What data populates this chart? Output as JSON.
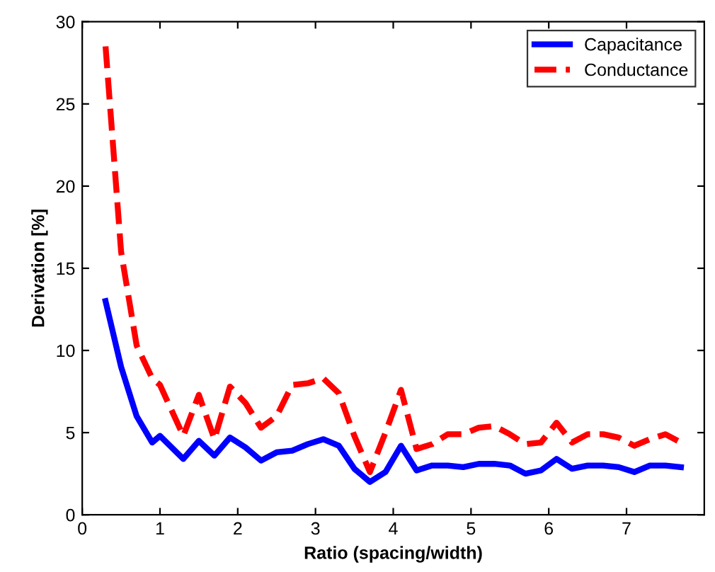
{
  "chart_data": {
    "type": "line",
    "xlabel": "Ratio (spacing/width)",
    "ylabel": "Derivation [%]",
    "x": [
      0.3,
      0.5,
      0.7,
      0.9,
      1.0,
      1.3,
      1.5,
      1.7,
      1.9,
      2.1,
      2.3,
      2.5,
      2.7,
      2.9,
      3.1,
      3.3,
      3.5,
      3.7,
      3.9,
      4.1,
      4.3,
      4.5,
      4.7,
      4.9,
      5.1,
      5.3,
      5.5,
      5.7,
      5.9,
      6.1,
      6.3,
      6.5,
      6.7,
      6.9,
      7.1,
      7.3,
      7.5,
      7.7
    ],
    "series": [
      {
        "name": "Capacitance",
        "color": "#0000ff",
        "line_style": "solid",
        "values": [
          13,
          9,
          6,
          4.4,
          4.8,
          3.4,
          4.5,
          3.6,
          4.7,
          4.1,
          3.3,
          3.8,
          3.9,
          4.3,
          4.6,
          4.2,
          2.8,
          2.0,
          2.6,
          4.2,
          2.7,
          3.0,
          3.0,
          2.9,
          3.1,
          3.1,
          3.0,
          2.5,
          2.7,
          3.4,
          2.8,
          3.0,
          3.0,
          2.9,
          2.6,
          3.0,
          3.0,
          2.9
        ]
      },
      {
        "name": "Conductance",
        "color": "#ff0000",
        "line_style": "dashed",
        "values": [
          28.5,
          16,
          10.3,
          8.3,
          7.9,
          4.8,
          7.3,
          4.6,
          7.8,
          6.8,
          5.3,
          6.0,
          7.9,
          8.0,
          8.3,
          7.4,
          4.8,
          2.6,
          5.0,
          7.6,
          4.0,
          4.3,
          4.9,
          4.9,
          5.3,
          5.4,
          4.9,
          4.3,
          4.4,
          5.6,
          4.4,
          4.9,
          4.9,
          4.7,
          4.2,
          4.6,
          4.9,
          4.4
        ]
      }
    ],
    "xlim": [
      0,
      8
    ],
    "xticks": [
      0,
      1,
      2,
      3,
      4,
      5,
      6,
      7
    ],
    "ylim": [
      0,
      30
    ],
    "yticks": [
      0,
      5,
      10,
      15,
      20,
      25,
      30
    ],
    "grid": false,
    "legend": "top right"
  }
}
